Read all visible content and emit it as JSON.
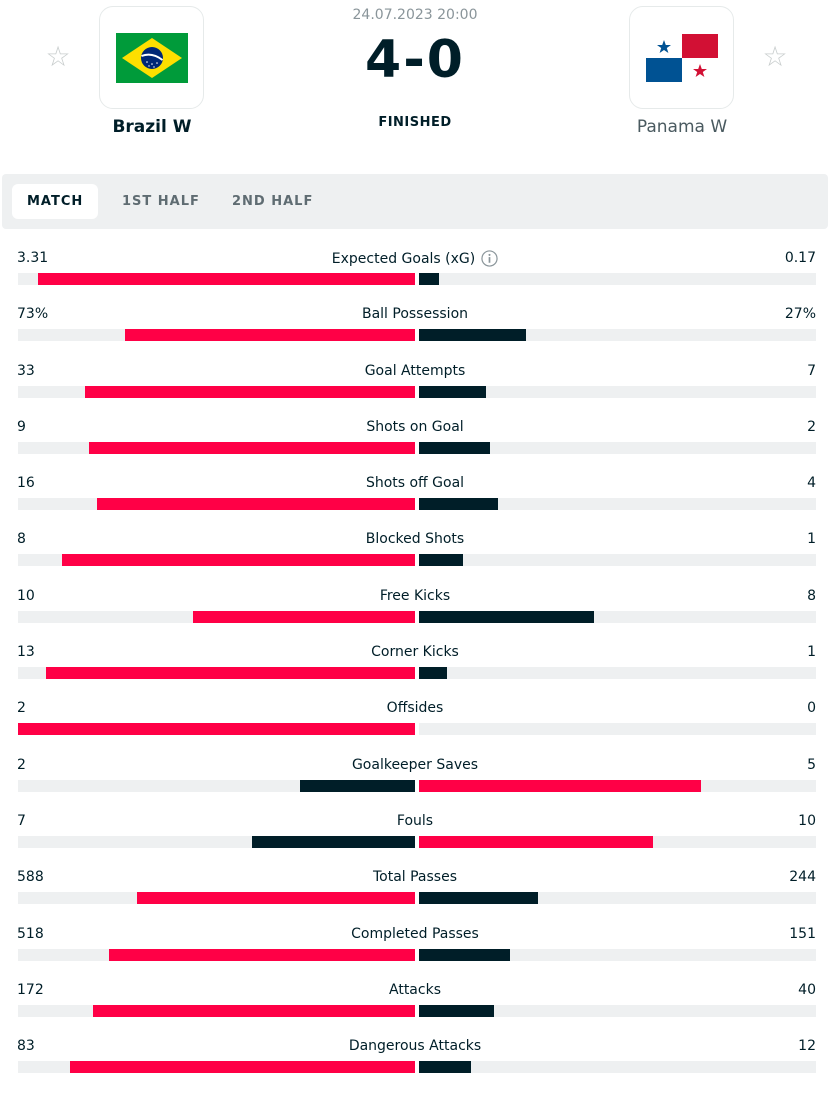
{
  "match": {
    "datetime": "24.07.2023 20:00",
    "score": "4-0",
    "status": "FINISHED",
    "home": {
      "name": "Brazil W",
      "flag": "brazil-flag"
    },
    "away": {
      "name": "Panama W",
      "flag": "panama-flag"
    }
  },
  "tabs": [
    {
      "label": "MATCH",
      "active": true
    },
    {
      "label": "1ST HALF",
      "active": false
    },
    {
      "label": "2ND HALF",
      "active": false
    }
  ],
  "colors": {
    "winner": "#ff0046",
    "loser": "#001e28",
    "track": "#eef0f1",
    "star": "#c8cdcd"
  },
  "stats": [
    {
      "label": "Expected Goals (xG)",
      "home": "3.31",
      "away": "0.17",
      "home_share": 0.95,
      "away_share": 0.05,
      "info": true
    },
    {
      "label": "Ball Possession",
      "home": "73%",
      "away": "27%",
      "home_share": 0.73,
      "away_share": 0.27
    },
    {
      "label": "Goal Attempts",
      "home": "33",
      "away": "7",
      "home_share": 0.83,
      "away_share": 0.17
    },
    {
      "label": "Shots on Goal",
      "home": "9",
      "away": "2",
      "home_share": 0.82,
      "away_share": 0.18
    },
    {
      "label": "Shots off Goal",
      "home": "16",
      "away": "4",
      "home_share": 0.8,
      "away_share": 0.2
    },
    {
      "label": "Blocked Shots",
      "home": "8",
      "away": "1",
      "home_share": 0.89,
      "away_share": 0.11
    },
    {
      "label": "Free Kicks",
      "home": "10",
      "away": "8",
      "home_share": 0.56,
      "away_share": 0.44
    },
    {
      "label": "Corner Kicks",
      "home": "13",
      "away": "1",
      "home_share": 0.93,
      "away_share": 0.07
    },
    {
      "label": "Offsides",
      "home": "2",
      "away": "0",
      "home_share": 1.0,
      "away_share": 0.0
    },
    {
      "label": "Goalkeeper Saves",
      "home": "2",
      "away": "5",
      "home_share": 0.29,
      "away_share": 0.71
    },
    {
      "label": "Fouls",
      "home": "7",
      "away": "10",
      "home_share": 0.41,
      "away_share": 0.59
    },
    {
      "label": "Total Passes",
      "home": "588",
      "away": "244",
      "home_share": 0.7,
      "away_share": 0.3
    },
    {
      "label": "Completed Passes",
      "home": "518",
      "away": "151",
      "home_share": 0.77,
      "away_share": 0.23
    },
    {
      "label": "Attacks",
      "home": "172",
      "away": "40",
      "home_share": 0.81,
      "away_share": 0.19
    },
    {
      "label": "Dangerous Attacks",
      "home": "83",
      "away": "12",
      "home_share": 0.87,
      "away_share": 0.13
    }
  ]
}
